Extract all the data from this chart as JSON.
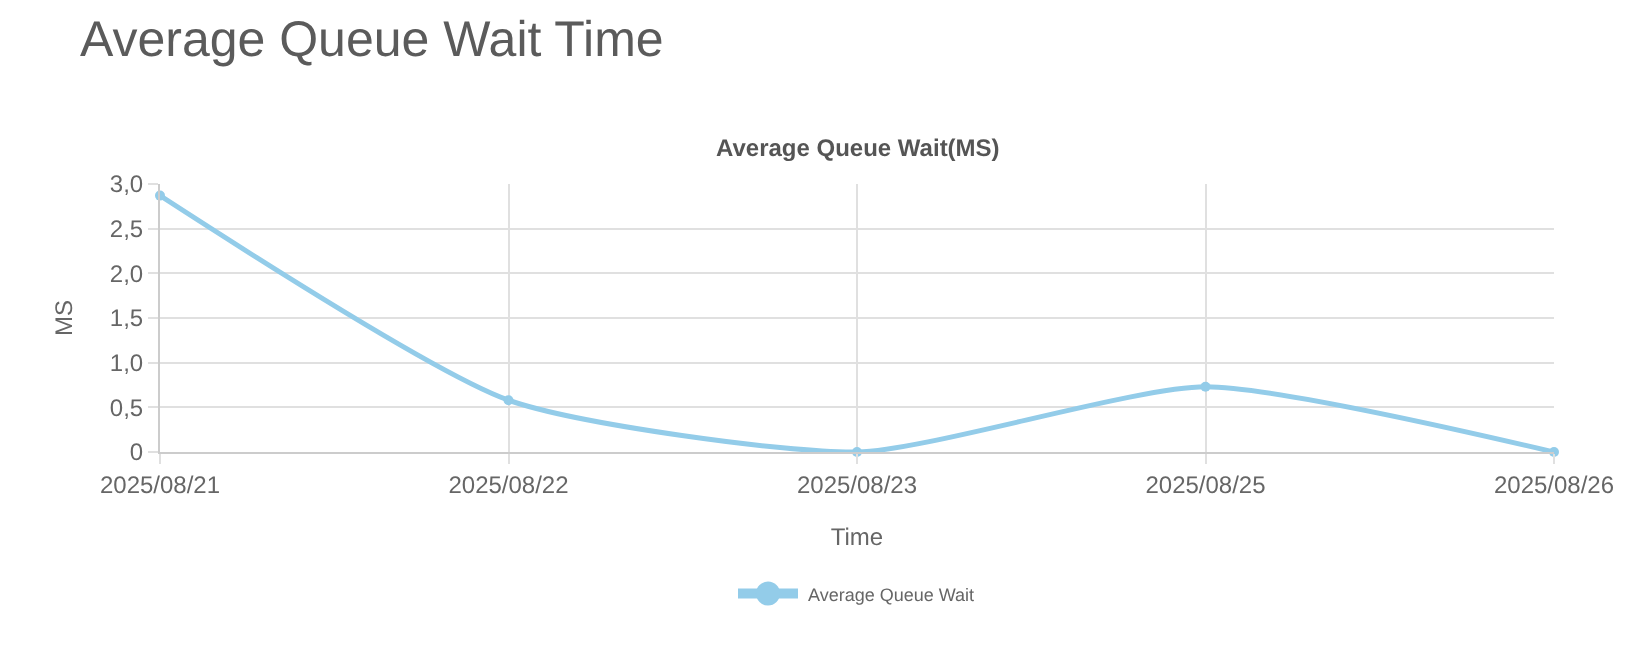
{
  "chart_data": {
    "type": "line",
    "title": "Average Queue Wait Time",
    "subtitle": "Average Queue Wait(MS)",
    "xlabel": "Time",
    "ylabel": "MS",
    "categories": [
      "2025/08/21",
      "2025/08/22",
      "2025/08/23",
      "2025/08/25",
      "2025/08/26"
    ],
    "series": [
      {
        "name": "Average Queue Wait",
        "color": "#93cce9",
        "values": [
          2.87,
          0.58,
          0,
          0.73,
          0
        ]
      }
    ],
    "ylim": [
      0,
      3
    ],
    "yticks": [
      0,
      {
        "value": 0.5,
        "label": "0,5"
      },
      {
        "value": 1,
        "label": "1,0"
      },
      {
        "value": 1.5,
        "label": "1,5"
      },
      {
        "value": 2,
        "label": "2,0"
      },
      {
        "value": 2.5,
        "label": "2,5"
      },
      {
        "value": 3,
        "label": "3,0"
      }
    ],
    "grid": true,
    "legend": "bottom",
    "marker": "circle",
    "line_style": "solid"
  }
}
